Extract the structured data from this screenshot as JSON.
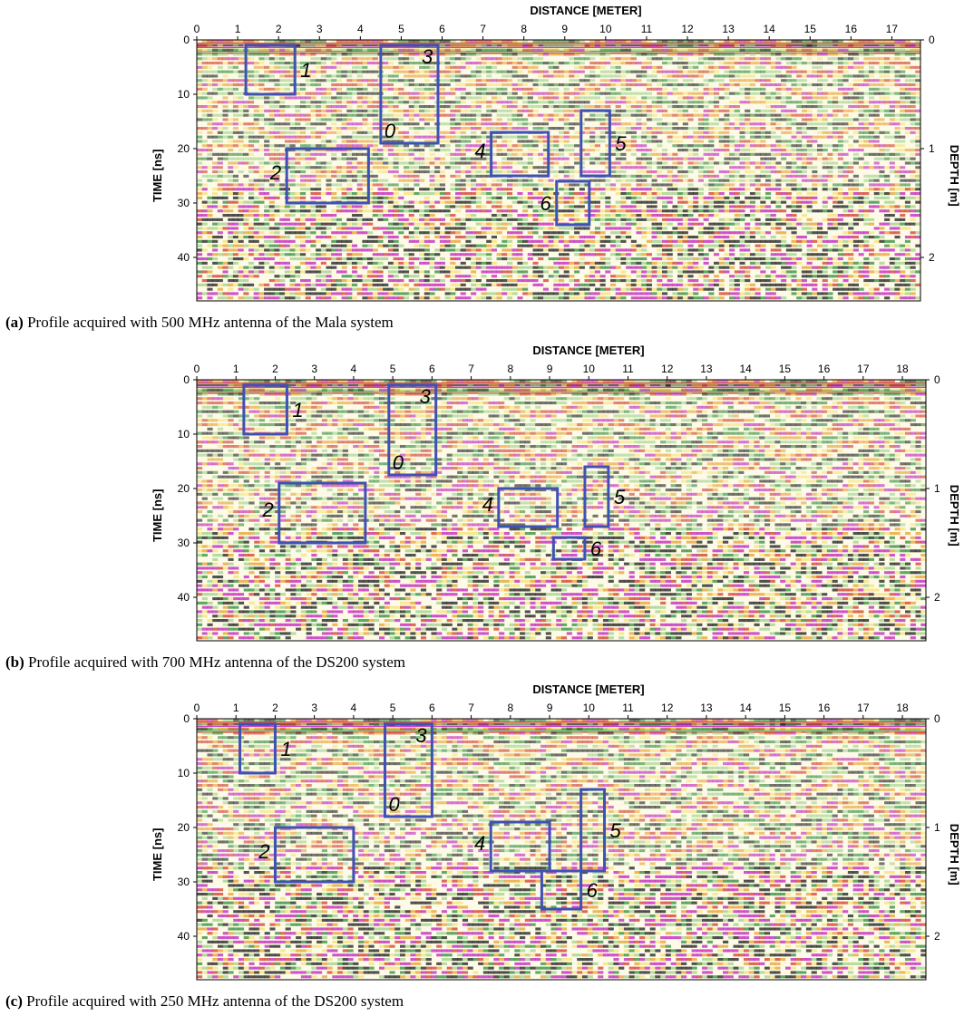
{
  "panels": [
    {
      "id": "a",
      "caption_letter": "(a)",
      "caption_text": "Profile acquired with 500 MHz antenna of the Mala system",
      "x_axis_title": "DISTANCE [METER]",
      "y_axis_title": "TIME [ns]",
      "y2_axis_title": "DEPTH [m]",
      "x_ticks": [
        "0",
        "1",
        "2",
        "3",
        "4",
        "5",
        "6",
        "7",
        "8",
        "9",
        "10",
        "11",
        "12",
        "13",
        "14",
        "15",
        "16",
        "17"
      ],
      "x_range": [
        0,
        17.7
      ],
      "y_ticks": [
        "0",
        "10",
        "20",
        "30",
        "40"
      ],
      "y_range": [
        0,
        48
      ],
      "depth_ticks": [
        {
          "label": "0",
          "time": 0
        },
        {
          "label": "1",
          "time": 20
        },
        {
          "label": "2",
          "time": 40
        }
      ],
      "boxes": [
        {
          "label": "1",
          "x0": 1.2,
          "x1": 2.4,
          "t0": 1,
          "t1": 10
        },
        {
          "label": "3",
          "x0": 4.5,
          "x1": 5.9,
          "t0": 1,
          "t1": 19
        },
        {
          "label": "0",
          "x0": 4.5,
          "x1": 5.9,
          "t0": 1,
          "t1": 19
        },
        {
          "label": "2",
          "x0": 2.2,
          "x1": 4.2,
          "t0": 20,
          "t1": 30
        },
        {
          "label": "4",
          "x0": 7.2,
          "x1": 8.6,
          "t0": 17,
          "t1": 25
        },
        {
          "label": "5",
          "x0": 9.4,
          "x1": 10.1,
          "t0": 13,
          "t1": 25
        },
        {
          "label": "6",
          "x0": 8.8,
          "x1": 9.6,
          "t0": 26,
          "t1": 34
        }
      ]
    },
    {
      "id": "b",
      "caption_letter": "(b)",
      "caption_text": "Profile acquired with 700 MHz antenna of the DS200 system",
      "x_axis_title": "DISTANCE [METER]",
      "y_axis_title": "TIME [ns]",
      "y2_axis_title": "DEPTH [m]",
      "x_ticks": [
        "0",
        "1",
        "2",
        "3",
        "4",
        "5",
        "6",
        "7",
        "8",
        "9",
        "10",
        "11",
        "12",
        "13",
        "14",
        "15",
        "16",
        "17",
        "18"
      ],
      "x_range": [
        0,
        18.6
      ],
      "y_ticks": [
        "0",
        "10",
        "20",
        "30",
        "40"
      ],
      "y_range": [
        0,
        48
      ],
      "depth_ticks": [
        {
          "label": "0",
          "time": 0
        },
        {
          "label": "1",
          "time": 20
        },
        {
          "label": "2",
          "time": 40
        }
      ],
      "boxes": [
        {
          "label": "1",
          "x0": 1.2,
          "x1": 2.3,
          "t0": 1,
          "t1": 10
        },
        {
          "label": "3",
          "x0": 4.9,
          "x1": 6.1,
          "t0": 1,
          "t1": 17.5
        },
        {
          "label": "0",
          "x0": 4.9,
          "x1": 6.1,
          "t0": 1,
          "t1": 17.5
        },
        {
          "label": "2",
          "x0": 2.1,
          "x1": 4.3,
          "t0": 19,
          "t1": 30
        },
        {
          "label": "4",
          "x0": 7.7,
          "x1": 9.2,
          "t0": 20,
          "t1": 27
        },
        {
          "label": "5",
          "x0": 9.9,
          "x1": 10.5,
          "t0": 16,
          "t1": 27
        },
        {
          "label": "6",
          "x0": 9.1,
          "x1": 9.9,
          "t0": 29,
          "t1": 33
        }
      ]
    },
    {
      "id": "c",
      "caption_letter": "(c)",
      "caption_text": "Profile acquired with 250 MHz antenna of the DS200 system",
      "x_axis_title": "DISTANCE [METER]",
      "y_axis_title": "TIME [ns]",
      "y2_axis_title": "DEPTH [m]",
      "x_ticks": [
        "0",
        "1",
        "2",
        "3",
        "4",
        "5",
        "6",
        "7",
        "8",
        "9",
        "10",
        "11",
        "12",
        "13",
        "14",
        "15",
        "16",
        "17",
        "18"
      ],
      "x_range": [
        0,
        18.6
      ],
      "y_ticks": [
        "0",
        "10",
        "20",
        "30",
        "40"
      ],
      "y_range": [
        0,
        48
      ],
      "depth_ticks": [
        {
          "label": "0",
          "time": 0
        },
        {
          "label": "1",
          "time": 20
        },
        {
          "label": "2",
          "time": 40
        }
      ],
      "boxes": [
        {
          "label": "1",
          "x0": 1.1,
          "x1": 2.0,
          "t0": 1,
          "t1": 10
        },
        {
          "label": "3",
          "x0": 4.8,
          "x1": 6.0,
          "t0": 1,
          "t1": 18
        },
        {
          "label": "0",
          "x0": 4.8,
          "x1": 6.0,
          "t0": 1,
          "t1": 18
        },
        {
          "label": "2",
          "x0": 2.0,
          "x1": 4.0,
          "t0": 20,
          "t1": 30
        },
        {
          "label": "4",
          "x0": 7.5,
          "x1": 9.0,
          "t0": 19,
          "t1": 28
        },
        {
          "label": "5",
          "x0": 9.8,
          "x1": 10.4,
          "t0": 13,
          "t1": 28
        },
        {
          "label": "6",
          "x0": 8.8,
          "x1": 9.8,
          "t0": 28,
          "t1": 35
        }
      ]
    }
  ],
  "colors": {
    "box_stroke": "#3f51b5",
    "radargram_palette": [
      "#ffffff",
      "#f6e27a",
      "#e8a030",
      "#d13a2c",
      "#c01fbf",
      "#1a1a1a",
      "#2e8b3a",
      "#9fd28a"
    ]
  }
}
